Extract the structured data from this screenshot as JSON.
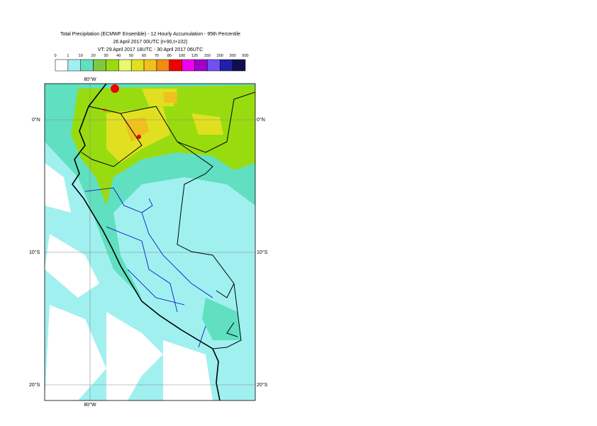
{
  "header": {
    "title": "Total Precipitation (ECMWF Ensemble) - 12 Hourly Accumulation - 95th Percentile",
    "subtitle": "26 April 2017 00UTC (t+90,t+102)",
    "valid_time": "VT: 29 April 2017 18UTC - 30 April 2017 06UTC"
  },
  "legend": {
    "labels": [
      0,
      1,
      10,
      20,
      30,
      40,
      50,
      60,
      70,
      80,
      100,
      125,
      150,
      200,
      300,
      500
    ],
    "colors": [
      "#ffffff",
      "#a0f0f0",
      "#60e0c0",
      "#80c840",
      "#98dc10",
      "#e8f870",
      "#e0e020",
      "#f0c020",
      "#f08c10",
      "#f00000",
      "#f000f0",
      "#a000c8",
      "#7050f0",
      "#2020a8",
      "#101050"
    ]
  },
  "map": {
    "lat_labels": [
      "0°N",
      "10°S",
      "20°S"
    ],
    "lon_label": "80°W"
  }
}
